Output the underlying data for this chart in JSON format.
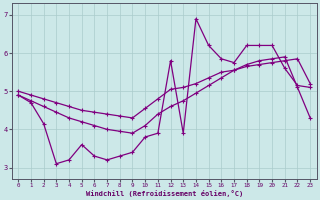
{
  "xlabel": "Windchill (Refroidissement éolien,°C)",
  "background_color": "#cce8e8",
  "line_color": "#800080",
  "grid_color": "#aacccc",
  "xlim": [
    -0.5,
    23.5
  ],
  "ylim": [
    2.7,
    7.3
  ],
  "yticks": [
    3,
    4,
    5,
    6,
    7
  ],
  "xticks": [
    0,
    1,
    2,
    3,
    4,
    5,
    6,
    7,
    8,
    9,
    10,
    11,
    12,
    13,
    14,
    15,
    16,
    17,
    18,
    19,
    20,
    21,
    22,
    23
  ],
  "s1_x": [
    0,
    1,
    2,
    3,
    4,
    5,
    6,
    7,
    8,
    9,
    10,
    11,
    12,
    13,
    14,
    15,
    16,
    17,
    18,
    19,
    20,
    21,
    22,
    23
  ],
  "s1_y": [
    4.9,
    4.7,
    4.15,
    3.1,
    3.2,
    3.6,
    3.3,
    3.2,
    3.3,
    3.4,
    3.8,
    3.9,
    5.8,
    3.9,
    6.9,
    6.2,
    5.85,
    5.75,
    6.2,
    6.2,
    6.2,
    5.6,
    5.15,
    5.1
  ],
  "s2_x": [
    0,
    1,
    2,
    3,
    4,
    5,
    6,
    7,
    8,
    9,
    10,
    11,
    12,
    13,
    14,
    15,
    16,
    17,
    18,
    19,
    20,
    21,
    22,
    23
  ],
  "s2_y": [
    5.0,
    4.9,
    4.8,
    4.7,
    4.6,
    4.5,
    4.45,
    4.4,
    4.35,
    4.3,
    4.55,
    4.8,
    5.05,
    5.1,
    5.2,
    5.35,
    5.5,
    5.55,
    5.65,
    5.7,
    5.75,
    5.8,
    5.85,
    5.2
  ],
  "s3_x": [
    0,
    1,
    2,
    3,
    4,
    5,
    6,
    7,
    8,
    9,
    10,
    11,
    12,
    13,
    14,
    15,
    16,
    17,
    18,
    19,
    20,
    21,
    22,
    23
  ],
  "s3_y": [
    4.9,
    4.75,
    4.6,
    4.45,
    4.3,
    4.2,
    4.1,
    4.0,
    3.95,
    3.9,
    4.1,
    4.4,
    4.6,
    4.75,
    4.95,
    5.15,
    5.35,
    5.55,
    5.7,
    5.8,
    5.85,
    5.9,
    5.1,
    4.3
  ]
}
